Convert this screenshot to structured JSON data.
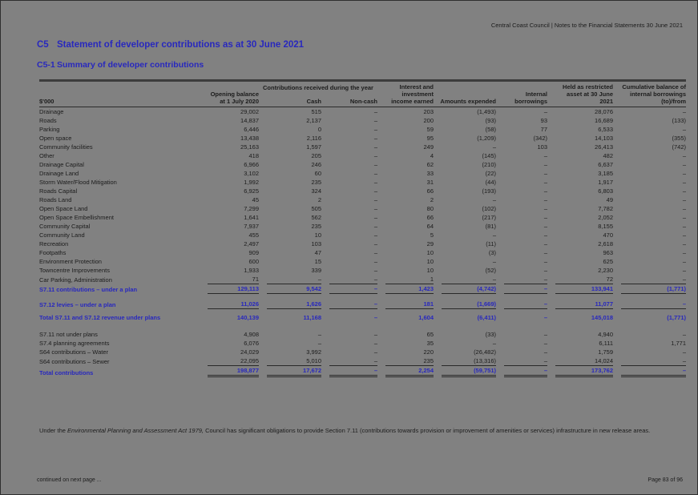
{
  "colors": {
    "page_gray": "#818181",
    "accent_blue": "#2828be",
    "rule_dark": "#2a2a2a"
  },
  "page": {
    "header_right": "Central Coast Council | Notes to the Financial Statements 30 June 2021",
    "section_code": "C5",
    "section_title": "Statement of developer contributions as at 30 June 2021",
    "subsection_code": "C5-1",
    "subsection_title": "Summary of developer contributions",
    "footnote_prefix": "Under the ",
    "footnote_act": "Environmental Planning and Assessment Act 1979,",
    "footnote_suffix": " Council has significant obligations to provide Section 7.11 (contributions towards provision or improvement of amenities or services) infrastructure in new release areas.",
    "footer_left": "continued on next page ...",
    "footer_right": "Page 83 of 96"
  },
  "table": {
    "unit_label": "$'000",
    "group_header": "Contributions received during the year",
    "columns": [
      "Opening balance at 1 July 2020",
      "Cash",
      "Non-cash",
      "Interest and investment income earned",
      "Amounts expended",
      "Internal borrowings",
      "Held as restricted asset at 30 June 2021",
      "Cumulative balance of internal borrowings (to)/from"
    ],
    "rows": [
      {
        "label": "Drainage",
        "style": "data",
        "cells": [
          "29,002",
          "515",
          "–",
          "203",
          "(1,493)",
          "–",
          "28,076",
          "–"
        ]
      },
      {
        "label": "Roads",
        "style": "data",
        "cells": [
          "14,837",
          "2,137",
          "–",
          "200",
          "(93)",
          "93",
          "16,689",
          "(133)"
        ]
      },
      {
        "label": "Parking",
        "style": "data",
        "cells": [
          "6,446",
          "0",
          "–",
          "59",
          "(58)",
          "77",
          "6,533",
          "–"
        ]
      },
      {
        "label": "Open space",
        "style": "data",
        "cells": [
          "13,438",
          "2,116",
          "–",
          "95",
          "(1,209)",
          "(342)",
          "14,103",
          "(355)"
        ]
      },
      {
        "label": "Community facilities",
        "style": "data",
        "cells": [
          "25,163",
          "1,597",
          "–",
          "249",
          "–",
          "103",
          "26,413",
          "(742)"
        ]
      },
      {
        "label": "Other",
        "style": "data",
        "cells": [
          "418",
          "205",
          "–",
          "4",
          "(145)",
          "–",
          "482",
          "–"
        ]
      },
      {
        "label": "Drainage Capital",
        "style": "data",
        "cells": [
          "6,966",
          "246",
          "–",
          "62",
          "(210)",
          "–",
          "6,637",
          "–"
        ]
      },
      {
        "label": "Drainage Land",
        "style": "data",
        "cells": [
          "3,102",
          "60",
          "–",
          "33",
          "(22)",
          "–",
          "3,185",
          "–"
        ]
      },
      {
        "label": "Storm Water/Flood Mitigation",
        "style": "data",
        "cells": [
          "1,992",
          "235",
          "–",
          "31",
          "(44)",
          "–",
          "1,917",
          "–"
        ]
      },
      {
        "label": "Roads Capital",
        "style": "data",
        "cells": [
          "6,925",
          "324",
          "–",
          "66",
          "(193)",
          "–",
          "6,803",
          "–"
        ]
      },
      {
        "label": "Roads Land",
        "style": "data",
        "cells": [
          "45",
          "2",
          "–",
          "2",
          "–",
          "–",
          "49",
          "–"
        ]
      },
      {
        "label": "Open Space Land",
        "style": "data",
        "cells": [
          "7,299",
          "505",
          "–",
          "80",
          "(102)",
          "–",
          "7,782",
          "–"
        ]
      },
      {
        "label": "Open Space Embellishment",
        "style": "data",
        "cells": [
          "1,641",
          "562",
          "–",
          "66",
          "(217)",
          "–",
          "2,052",
          "–"
        ]
      },
      {
        "label": "Community Capital",
        "style": "data",
        "cells": [
          "7,937",
          "235",
          "–",
          "64",
          "(81)",
          "–",
          "8,155",
          "–"
        ]
      },
      {
        "label": "Community Land",
        "style": "data",
        "cells": [
          "455",
          "10",
          "–",
          "5",
          "–",
          "–",
          "470",
          "–"
        ]
      },
      {
        "label": "Recreation",
        "style": "data",
        "cells": [
          "2,497",
          "103",
          "–",
          "29",
          "(11)",
          "–",
          "2,618",
          "–"
        ]
      },
      {
        "label": "Footpaths",
        "style": "data",
        "cells": [
          "909",
          "47",
          "–",
          "10",
          "(3)",
          "–",
          "963",
          "–"
        ]
      },
      {
        "label": "Environment Protection",
        "style": "data",
        "cells": [
          "600",
          "15",
          "–",
          "10",
          "–",
          "–",
          "625",
          "–"
        ]
      },
      {
        "label": "Towncentre Improvements",
        "style": "data",
        "cells": [
          "1,933",
          "339",
          "–",
          "10",
          "(52)",
          "–",
          "2,230",
          "–"
        ]
      },
      {
        "label": "Car Parking, Administration",
        "style": "data",
        "cells": [
          "71",
          "–",
          "–",
          "1",
          "–",
          "–",
          "72",
          "–"
        ],
        "rule_below": "single"
      },
      {
        "label": "S7.11 contributions – under a plan",
        "style": "subtotal",
        "cells": [
          "129,113",
          "9,542",
          "–",
          "1,423",
          "(4,742)",
          "–",
          "133,941",
          "(1,771)"
        ],
        "rule_below": "single"
      },
      {
        "label": "S7.12 levies – under a plan",
        "style": "subtotal",
        "gap_before": 7,
        "cells": [
          "11,026",
          "1,626",
          "–",
          "181",
          "(1,669)",
          "–",
          "11,077",
          "–"
        ],
        "rule_below": "single"
      },
      {
        "label": "Total S7.11 and S7.12 revenue under plans",
        "style": "subtotal",
        "gap_before": 5,
        "cells": [
          "140,139",
          "11,168",
          "–",
          "1,604",
          "(6,411)",
          "–",
          "145,018",
          "(1,771)"
        ]
      },
      {
        "label": "S7.11 not under plans",
        "style": "data",
        "gap_before": 10,
        "cells": [
          "4,908",
          "–",
          "–",
          "65",
          "(33)",
          "–",
          "4,940",
          "–"
        ]
      },
      {
        "label": "S7.4 planning agreements",
        "style": "data",
        "cells": [
          "6,076",
          "–",
          "–",
          "35",
          "–",
          "–",
          "6,111",
          "1,771"
        ]
      },
      {
        "label": "S64 contributions – Water",
        "style": "data",
        "cells": [
          "24,029",
          "3,992",
          "–",
          "220",
          "(26,482)",
          "–",
          "1,759",
          "–"
        ]
      },
      {
        "label": "S64 contributions – Sewer",
        "style": "data",
        "cells": [
          "22,095",
          "5,010",
          "–",
          "235",
          "(13,316)",
          "–",
          "14,024",
          "–"
        ],
        "rule_below": "single"
      },
      {
        "label": "Total contributions",
        "style": "grand",
        "cells": [
          "198,877",
          "17,672",
          "–",
          "2,254",
          "(59,751)",
          "–",
          "173,762",
          "–"
        ],
        "rule_below": "double"
      }
    ]
  }
}
